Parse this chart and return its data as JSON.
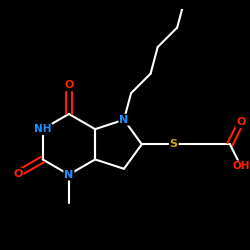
{
  "bg_color": "#000000",
  "atom_colors": {
    "N": "#1e90ff",
    "O": "#ff2200",
    "S": "#ccaa00",
    "C": "#ffffff"
  },
  "bond_color": "#ffffff",
  "bond_width": 1.5,
  "fig_size": [
    2.5,
    2.5
  ],
  "dpi": 100
}
